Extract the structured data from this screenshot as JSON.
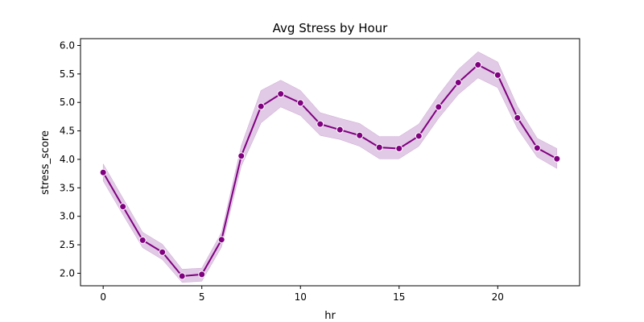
{
  "chart_data": {
    "type": "line",
    "title": "Avg Stress by Hour",
    "xlabel": "hr",
    "ylabel": "stress_score",
    "xlim": [
      -1.15,
      24.15
    ],
    "ylim": [
      1.78,
      6.12
    ],
    "xticks": [
      0,
      5,
      10,
      15,
      20
    ],
    "xtick_labels": [
      "0",
      "5",
      "10",
      "15",
      "20"
    ],
    "yticks": [
      2.0,
      2.5,
      3.0,
      3.5,
      4.0,
      4.5,
      5.0,
      5.5,
      6.0
    ],
    "ytick_labels": [
      "2.0",
      "2.5",
      "3.0",
      "3.5",
      "4.0",
      "4.5",
      "5.0",
      "5.5",
      "6.0"
    ],
    "grid": false,
    "legend": false,
    "series": [
      {
        "color": "#800080",
        "band_color": "#cda7d4",
        "marker": "circle",
        "x": [
          0,
          1,
          2,
          3,
          4,
          5,
          6,
          7,
          8,
          9,
          10,
          11,
          12,
          13,
          14,
          15,
          16,
          17,
          18,
          19,
          20,
          21,
          22,
          23
        ],
        "y": [
          3.77,
          3.17,
          2.58,
          2.37,
          1.95,
          1.98,
          2.59,
          4.06,
          4.93,
          5.15,
          4.99,
          4.62,
          4.52,
          4.42,
          4.21,
          4.19,
          4.41,
          4.92,
          5.35,
          5.66,
          5.48,
          4.73,
          4.2,
          4.01
        ],
        "ci_lower": [
          3.62,
          3.03,
          2.45,
          2.24,
          1.84,
          1.86,
          2.46,
          3.88,
          4.64,
          4.92,
          4.77,
          4.42,
          4.35,
          4.23,
          4.01,
          4.01,
          4.23,
          4.72,
          5.14,
          5.43,
          5.26,
          4.54,
          4.04,
          3.84
        ],
        "ci_upper": [
          3.92,
          3.32,
          2.72,
          2.51,
          2.07,
          2.09,
          2.72,
          4.24,
          5.21,
          5.39,
          5.21,
          4.82,
          4.72,
          4.63,
          4.4,
          4.4,
          4.62,
          5.13,
          5.58,
          5.89,
          5.71,
          4.93,
          4.37,
          4.19
        ]
      }
    ]
  }
}
